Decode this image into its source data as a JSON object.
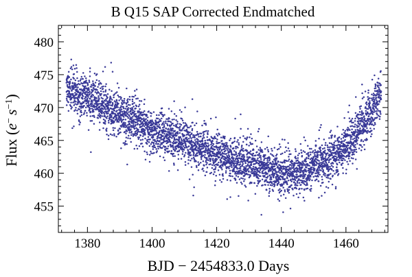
{
  "chart_data": {
    "type": "scatter",
    "title": "B Q15 SAP Corrected Endmatched",
    "xlabel": "BJD − 2454833.0 Days",
    "ylabel_prefix": "Flux (",
    "ylabel_e": "e",
    "ylabel_e_sup": "−",
    "ylabel_s": "s",
    "ylabel_s_sup": "−1",
    "ylabel_suffix": ")",
    "xlim": [
      1371,
      1473
    ],
    "ylim": [
      451,
      482.5
    ],
    "x_major_ticks": [
      1380,
      1400,
      1420,
      1440,
      1460
    ],
    "x_tick_labels": [
      "1380",
      "1400",
      "1420",
      "1440",
      "1460"
    ],
    "y_major_ticks": [
      455,
      460,
      465,
      470,
      475,
      480
    ],
    "y_tick_labels": [
      "455",
      "460",
      "465",
      "470",
      "475",
      "480"
    ],
    "series_color": "#3a3a98",
    "x_start": 1373.5,
    "x_end": 1470.9,
    "point_count": 4200,
    "trend": [
      {
        "x": 1373.5,
        "y": 473.0
      },
      {
        "x": 1380,
        "y": 471.5
      },
      {
        "x": 1390,
        "y": 468.8
      },
      {
        "x": 1400,
        "y": 466.8
      },
      {
        "x": 1410,
        "y": 464.8
      },
      {
        "x": 1420,
        "y": 463.0
      },
      {
        "x": 1430,
        "y": 461.4
      },
      {
        "x": 1437,
        "y": 460.5
      },
      {
        "x": 1442,
        "y": 459.9
      },
      {
        "x": 1447,
        "y": 460.4
      },
      {
        "x": 1452,
        "y": 461.3
      },
      {
        "x": 1458,
        "y": 463.2
      },
      {
        "x": 1463,
        "y": 465.8
      },
      {
        "x": 1467,
        "y": 468.6
      },
      {
        "x": 1470.9,
        "y": 472.5
      }
    ],
    "scatter_sigma": 1.6
  }
}
